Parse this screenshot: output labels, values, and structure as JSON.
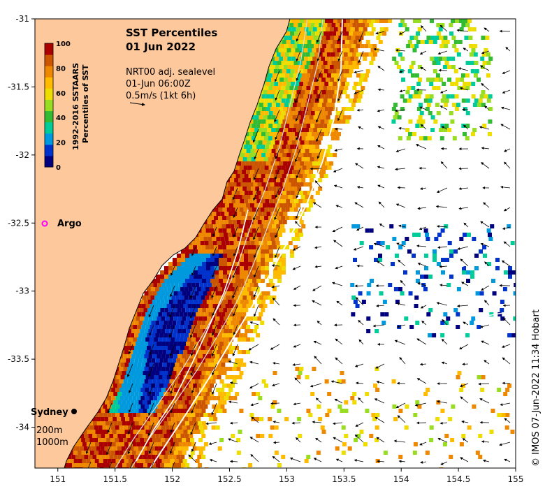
{
  "map": {
    "title": "SST Percentiles",
    "date": "01 Jun 2022",
    "info_lines": [
      "NRT00 adj. sealevel",
      "01-Jun 06:00Z",
      "0.5m/s (1kt 6h)"
    ],
    "x_ticks": [
      "151",
      "151.5",
      "152",
      "152.5",
      "153",
      "153.5",
      "154",
      "154.5",
      "155"
    ],
    "y_ticks": [
      "-31",
      "-31.5",
      "-32",
      "-32.5",
      "-33",
      "-33.5",
      "-34"
    ],
    "lon_range": [
      150.8,
      155
    ],
    "lat_range": [
      -31,
      -34.3
    ],
    "colorbar": {
      "title_line1": "1992-2016 SSTAARS",
      "title_line2": "Percentiles of SST",
      "tick_labels": [
        "100",
        "80",
        "60",
        "40",
        "20",
        "0"
      ],
      "colors": [
        "#00007f",
        "#0033cc",
        "#0099dd",
        "#00cc99",
        "#33bb33",
        "#99dd22",
        "#eedd00",
        "#ffbb00",
        "#ee8800",
        "#cc5500",
        "#aa0000"
      ]
    },
    "places": {
      "sydney": "Sydney",
      "argo": "Argo"
    },
    "isobaths": [
      "200m",
      "1000m"
    ],
    "credit": "© IMOS 07-Jun-2022 11:34 Hobart",
    "land_color": "#fdc89b"
  }
}
